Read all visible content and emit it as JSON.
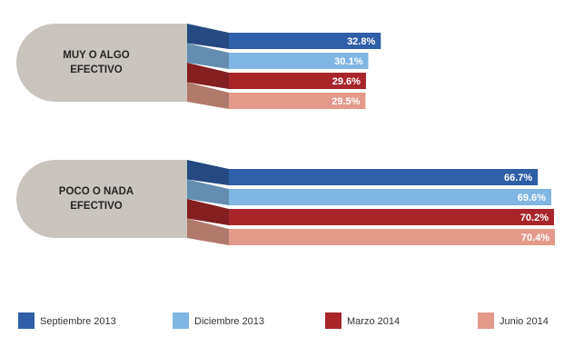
{
  "chart_data": {
    "type": "bar",
    "orientation": "horizontal",
    "categories": [
      "MUY O ALGO EFECTIVO",
      "POCO O NADA EFECTIVO"
    ],
    "category_lines": [
      [
        "MUY O ALGO",
        "EFECTIVO"
      ],
      [
        "POCO  O NADA",
        "EFECTIVO"
      ]
    ],
    "series": [
      {
        "name": "Septiembre 2013",
        "color": "#2f5fa7",
        "values": [
          32.8,
          66.7
        ],
        "labels": [
          "32.8%",
          "66.7%"
        ]
      },
      {
        "name": "Diciembre 2013",
        "color": "#7fb6e3",
        "values": [
          30.1,
          69.6
        ],
        "labels": [
          "30.1%",
          "69.6%"
        ]
      },
      {
        "name": "Marzo 2014",
        "color": "#a8262a",
        "values": [
          29.6,
          70.2
        ],
        "labels": [
          "29.6%",
          "70.2%"
        ]
      },
      {
        "name": "Junio 2014",
        "color": "#e39a8a",
        "values": [
          29.5,
          70.4
        ],
        "labels": [
          "29.5%",
          "70.4%"
        ]
      }
    ],
    "xlim": [
      0,
      100
    ],
    "grid": false,
    "legend": "bottom",
    "title": "",
    "xlabel": "",
    "ylabel": ""
  }
}
